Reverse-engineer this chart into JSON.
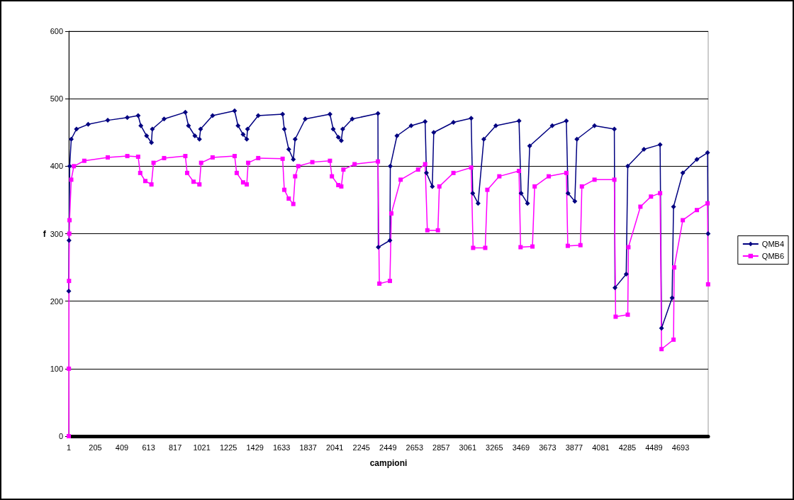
{
  "chart_data": {
    "type": "line",
    "xlabel": "campioni",
    "ylabel": "f",
    "xlim": [
      1,
      4905
    ],
    "xticks": [
      1,
      205,
      409,
      613,
      817,
      1021,
      1225,
      1429,
      1633,
      1837,
      2041,
      2245,
      2449,
      2653,
      2857,
      3061,
      3265,
      3469,
      3673,
      3877,
      4081,
      4285,
      4489,
      4693
    ],
    "ylim": [
      0,
      600
    ],
    "yticks": [
      0,
      100,
      200,
      300,
      400,
      500,
      600
    ],
    "grid": "y",
    "legend": "right",
    "line_style": "solid",
    "series": [
      {
        "name": "QMB4",
        "color": "#000080",
        "marker": "diamond",
        "x": [
          1,
          3,
          8,
          20,
          60,
          150,
          300,
          450,
          533,
          554,
          598,
          635,
          642,
          732,
          895,
          919,
          968,
          1003,
          1012,
          1104,
          1273,
          1299,
          1338,
          1366,
          1372,
          1454,
          1641,
          1654,
          1688,
          1723,
          1737,
          1815,
          2004,
          2029,
          2068,
          2091,
          2102,
          2175,
          2372,
          2375,
          2464,
          2467,
          2518,
          2627,
          2734,
          2744,
          2789,
          2800,
          2951,
          3087,
          3099,
          3140,
          3184,
          3276,
          3454,
          3470,
          3519,
          3536,
          3709,
          3817,
          3830,
          3882,
          3898,
          4033,
          4185,
          4190,
          4276,
          4288,
          4412,
          4536,
          4547,
          4628,
          4639,
          4710,
          4818,
          4900,
          4904
        ],
        "values": [
          215,
          290,
          400,
          440,
          455,
          462,
          468,
          472,
          475,
          460,
          445,
          435,
          455,
          470,
          480,
          460,
          445,
          440,
          455,
          475,
          482,
          460,
          447,
          440,
          455,
          475,
          477,
          455,
          425,
          410,
          440,
          470,
          477,
          455,
          443,
          438,
          455,
          470,
          478,
          280,
          290,
          400,
          445,
          460,
          466,
          390,
          370,
          450,
          465,
          471,
          360,
          345,
          440,
          460,
          467,
          360,
          345,
          430,
          460,
          467,
          360,
          348,
          440,
          460,
          455,
          220,
          240,
          400,
          425,
          432,
          160,
          205,
          340,
          390,
          410,
          420,
          300
        ]
      },
      {
        "name": "QMB6",
        "color": "#ff00ff",
        "marker": "square",
        "x": [
          1,
          2,
          3,
          5,
          7,
          20,
          40,
          120,
          300,
          450,
          533,
          549,
          588,
          635,
          651,
          732,
          895,
          909,
          958,
          1003,
          1016,
          1104,
          1273,
          1289,
          1338,
          1366,
          1377,
          1454,
          1641,
          1654,
          1688,
          1723,
          1737,
          1761,
          1869,
          2004,
          2019,
          2068,
          2091,
          2107,
          2193,
          2372,
          2383,
          2464,
          2475,
          2546,
          2680,
          2734,
          2751,
          2832,
          2843,
          2951,
          3087,
          3102,
          3195,
          3211,
          3303,
          3454,
          3466,
          3557,
          3574,
          3682,
          3817,
          3828,
          3925,
          3936,
          4033,
          4185,
          4195,
          4288,
          4293,
          4385,
          4466,
          4536,
          4547,
          4639,
          4644,
          4710,
          4818,
          4900,
          4904
        ],
        "values": [
          0,
          100,
          230,
          300,
          320,
          380,
          400,
          408,
          413,
          415,
          414,
          390,
          378,
          373,
          405,
          412,
          415,
          390,
          377,
          373,
          405,
          413,
          415,
          390,
          376,
          373,
          405,
          412,
          411,
          365,
          352,
          344,
          385,
          400,
          406,
          408,
          385,
          372,
          370,
          395,
          403,
          407,
          226,
          230,
          330,
          380,
          395,
          403,
          305,
          305,
          370,
          390,
          398,
          279,
          279,
          365,
          385,
          393,
          280,
          281,
          370,
          385,
          390,
          282,
          283,
          370,
          380,
          380,
          177,
          180,
          280,
          340,
          355,
          360,
          129,
          143,
          250,
          320,
          335,
          345,
          225
        ]
      }
    ]
  }
}
